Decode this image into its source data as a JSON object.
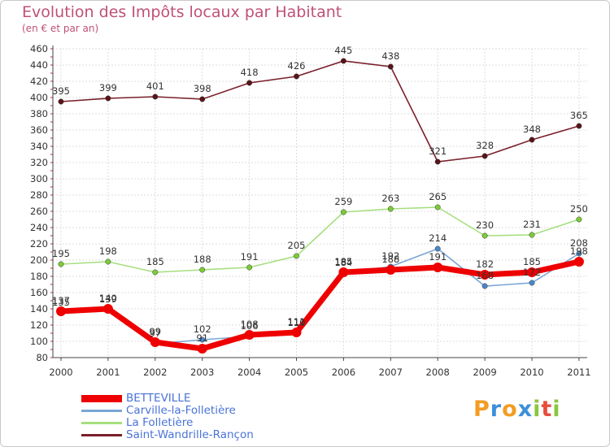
{
  "header": {
    "title": "Evolution des Impôts locaux par Habitant",
    "subtitle": "(en € et par an)"
  },
  "brand": {
    "letters": [
      "P",
      "r",
      "o",
      "x",
      "i",
      "t",
      "i"
    ],
    "colors": [
      "#f39c24",
      "#3d8fd8",
      "#f39c24",
      "#3d8fd8",
      "#8cc63f",
      "#e84c3d",
      "#8cc63f"
    ]
  },
  "chart_data": {
    "type": "line",
    "title": "Evolution des Impôts locaux par Habitant",
    "subtitle": "(en € et par an)",
    "xlabel": "",
    "ylabel": "",
    "ylim": [
      80,
      460
    ],
    "ytick_step": 20,
    "grid": true,
    "legend_position": "bottom-left",
    "categories": [
      "2000",
      "2001",
      "2002",
      "2003",
      "2004",
      "2005",
      "2006",
      "2007",
      "2008",
      "2009",
      "2010",
      "2011"
    ],
    "y_ticks": [
      "80",
      "100",
      "120",
      "140",
      "160",
      "180",
      "200",
      "220",
      "240",
      "260",
      "280",
      "300",
      "320",
      "340",
      "360",
      "380",
      "400",
      "420",
      "440",
      "460"
    ],
    "series": [
      {
        "name": "Saint-Wandrille-Rançon",
        "color": "#7a1f2a",
        "dot": "#5a1418",
        "values": [
          395,
          399,
          401,
          398,
          418,
          426,
          445,
          438,
          321,
          328,
          348,
          365
        ],
        "labels": [
          "395",
          "399",
          "401",
          "398",
          "418",
          "426",
          "445",
          "438",
          "321",
          "328",
          "348",
          "365"
        ]
      },
      {
        "name": "La Folletière",
        "color": "#a6de7e",
        "dot": "#7ccc38",
        "values": [
          195,
          198,
          185,
          188,
          191,
          205,
          259,
          263,
          265,
          230,
          231,
          250
        ],
        "labels": [
          "195",
          "198",
          "185",
          "188",
          "191",
          "205",
          "259",
          "263",
          "265",
          "230",
          "231",
          "250"
        ]
      },
      {
        "name": "Carville-la-Folletière",
        "color": "#7aa6d6",
        "dot": "#4a88c8",
        "values": [
          135,
          139,
          97,
          102,
          106,
          110,
          184,
          192,
          214,
          168,
          172,
          208
        ],
        "labels": [
          "135",
          "139",
          "97",
          "102",
          "106",
          "110",
          "184",
          "192",
          "214",
          "168",
          "172",
          "208"
        ]
      },
      {
        "name": "BETTEVILLE",
        "color": "#ee0000",
        "dot": "#ee0000",
        "values": [
          137,
          140,
          99,
          91,
          108,
          111,
          185,
          188,
          191,
          182,
          185,
          198
        ],
        "labels": [
          "137",
          "140",
          "99",
          "91",
          "108",
          "111",
          "185",
          "188",
          "191",
          "182",
          "185",
          "198"
        ]
      }
    ]
  }
}
